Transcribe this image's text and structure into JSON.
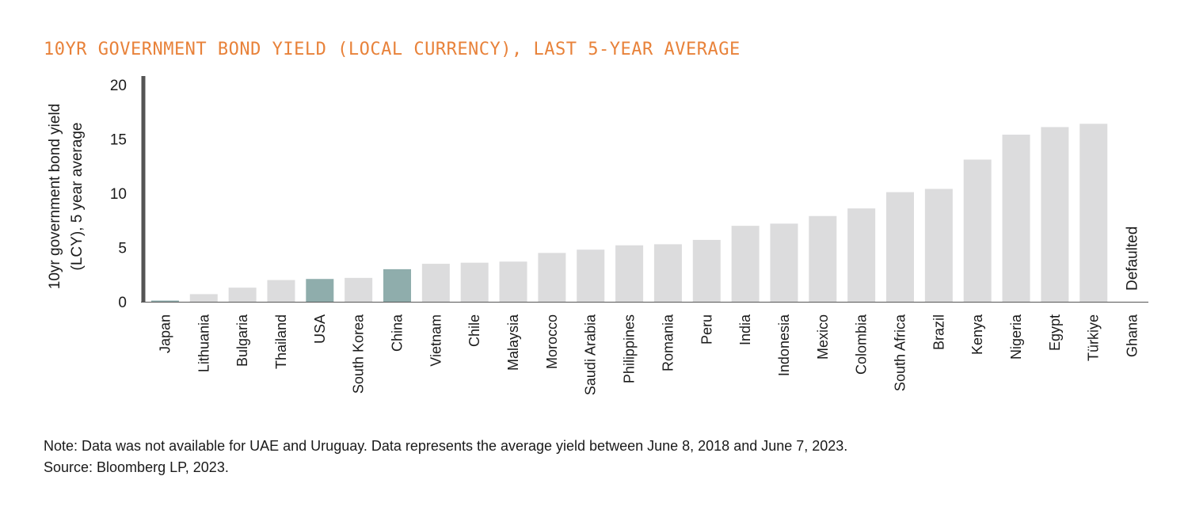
{
  "chart_data": {
    "type": "bar",
    "title": "10YR GOVERNMENT BOND YIELD (LOCAL CURRENCY), LAST 5-YEAR AVERAGE",
    "ylabel_lines": [
      "10yr government bond yield",
      "(LCY), 5 year average"
    ],
    "xlabel": "",
    "ylim": [
      0,
      20
    ],
    "yticks": [
      0,
      5,
      10,
      15,
      20
    ],
    "grid": false,
    "categories": [
      "Japan",
      "Lithuania",
      "Bulgaria",
      "Thailand",
      "USA",
      "South Korea",
      "China",
      "Vietnam",
      "Chile",
      "Malaysia",
      "Morocco",
      "Saudi Arabia",
      "Philippines",
      "Romania",
      "Peru",
      "India",
      "Indonesia",
      "Mexico",
      "Colombia",
      "South Africa",
      "Brazil",
      "Kenya",
      "Nigeria",
      "Egypt",
      "Türkiye",
      "Ghana"
    ],
    "values": [
      0.1,
      0.7,
      1.3,
      2.0,
      2.1,
      2.2,
      3.0,
      3.5,
      3.6,
      3.7,
      4.5,
      4.8,
      5.2,
      5.3,
      5.7,
      7.0,
      7.2,
      7.9,
      8.6,
      10.1,
      10.4,
      13.1,
      15.4,
      16.1,
      16.4,
      null
    ],
    "highlighted": [
      "USA",
      "China"
    ],
    "annotations": [
      {
        "category": "Ghana",
        "text": "Defaulted"
      }
    ],
    "colors": {
      "bar": "#dcdcdd",
      "highlight": "#8fadac",
      "japan": "#8fadac",
      "axis": "#555555",
      "title": "#e8823a"
    }
  },
  "note": {
    "line1": "Note: Data was not available for UAE and Uruguay. Data represents the average yield between June 8, 2018 and June 7, 2023.",
    "line2": "Source: Bloomberg LP, 2023."
  }
}
